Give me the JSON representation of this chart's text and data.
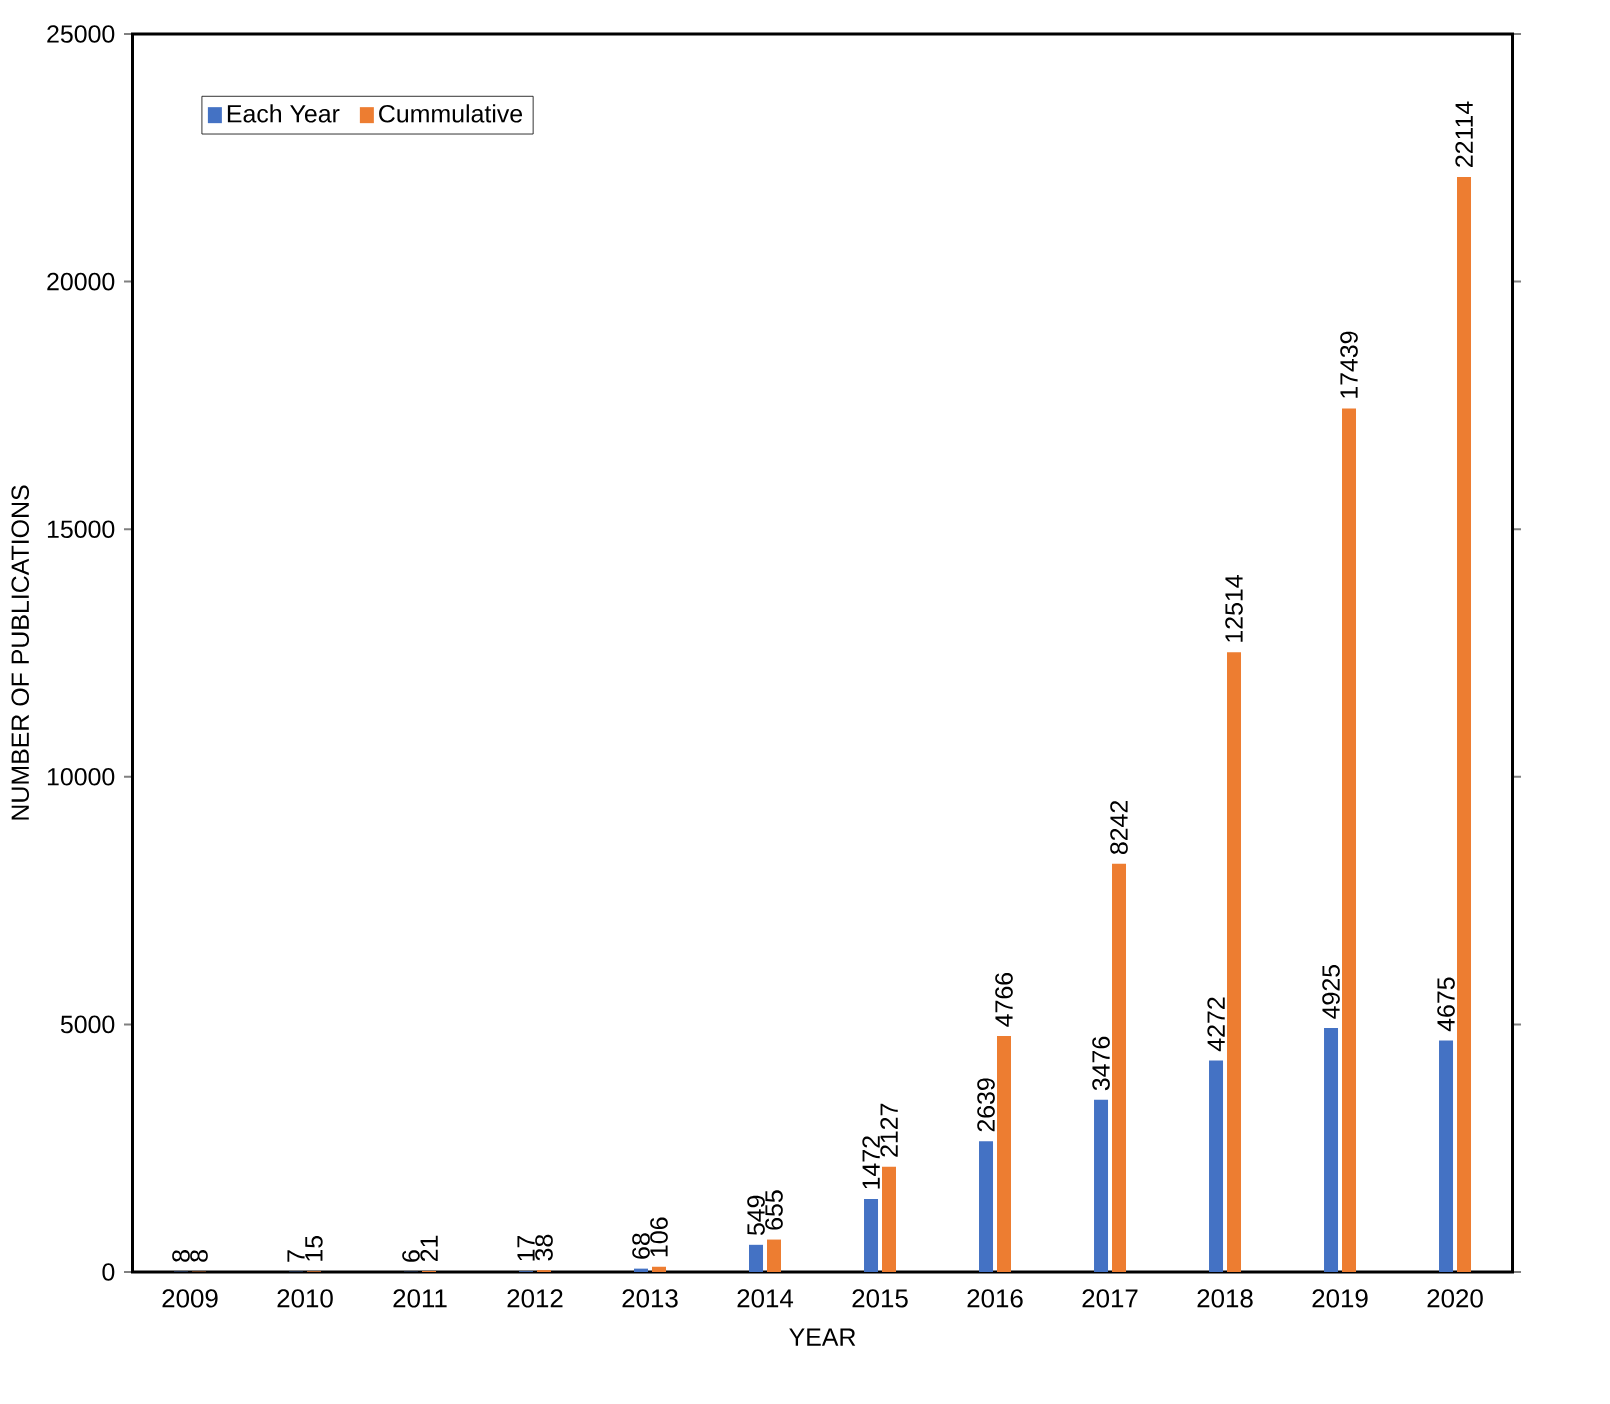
{
  "chart_data": {
    "type": "bar",
    "xlabel": "YEAR",
    "ylabel": "NUMBER OF PUBLICATIONS",
    "categories": [
      "2009",
      "2010",
      "2011",
      "2012",
      "2013",
      "2014",
      "2015",
      "2016",
      "2017",
      "2018",
      "2019",
      "2020"
    ],
    "series": [
      {
        "name": "Each Year",
        "color": "#4472c4",
        "values": [
          8,
          7,
          6,
          17,
          68,
          549,
          1472,
          2639,
          3476,
          4272,
          4925,
          4675
        ]
      },
      {
        "name": "Cummulative",
        "color": "#ed7d31",
        "values": [
          8,
          15,
          21,
          38,
          106,
          655,
          2127,
          4766,
          8242,
          12514,
          17439,
          22114
        ]
      }
    ],
    "ylim": [
      0,
      25000
    ],
    "yticks": [
      0,
      5000,
      10000,
      15000,
      20000,
      25000
    ],
    "data_labels": true,
    "legend": "top left",
    "grid": false
  }
}
